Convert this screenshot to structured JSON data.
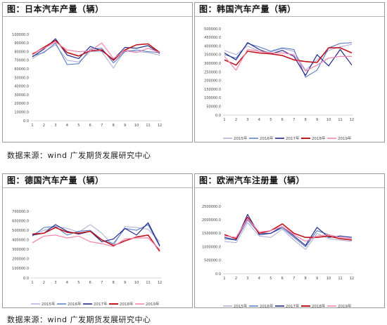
{
  "source_text": "数据来源：wind 广发期货发展研究中心",
  "colors": {
    "2015年": "#a9a9d4",
    "2016年": "#4a72c2",
    "2017年": "#222a8c",
    "2018年": "#c0141e",
    "2019年": "#f285aa"
  },
  "chart_data": [
    {
      "type": "line",
      "title": "图：日本汽车产量（辆）",
      "x": [
        1,
        2,
        3,
        4,
        5,
        6,
        7,
        8,
        9,
        10,
        11,
        12
      ],
      "ylim": [
        0,
        100000
      ],
      "yticks": [
        0,
        10000,
        20000,
        30000,
        40000,
        50000,
        60000,
        70000,
        80000,
        90000,
        100000
      ],
      "ytick_labels": [
        "0.0",
        "10000.0",
        "20000.0",
        "30000.0",
        "40000.0",
        "50000.0",
        "60000.0",
        "70000.0",
        "80000.0",
        "90000.0",
        "100000.0"
      ],
      "legend": "none",
      "series": [
        {
          "name": "2015年",
          "values": [
            72000,
            80000,
            88000,
            70000,
            68000,
            80000,
            80000,
            61000,
            82000,
            80000,
            79000,
            76000
          ]
        },
        {
          "name": "2016年",
          "values": [
            75000,
            79000,
            90000,
            65000,
            66000,
            83000,
            84000,
            67000,
            80000,
            82000,
            80000,
            79000
          ]
        },
        {
          "name": "2017年",
          "values": [
            74000,
            83000,
            95000,
            76000,
            72000,
            86000,
            81000,
            71000,
            85000,
            84000,
            87000,
            78000
          ]
        },
        {
          "name": "2018年",
          "values": [
            77000,
            85000,
            93000,
            79000,
            75000,
            81000,
            82000,
            70000,
            82000,
            88000,
            89000,
            79000
          ]
        },
        {
          "name": "2019年",
          "values": [
            78000,
            84000,
            91000,
            82000,
            80000,
            81000,
            90000,
            72000,
            81000,
            79000,
            84000,
            79000
          ]
        }
      ]
    },
    {
      "type": "line",
      "title": "图：韩国汽车产量（辆）",
      "x": [
        1,
        2,
        3,
        4,
        5,
        6,
        7,
        8,
        9,
        10,
        11,
        12
      ],
      "ylim": [
        0,
        500000
      ],
      "yticks": [
        0,
        50000,
        100000,
        150000,
        200000,
        250000,
        300000,
        350000,
        400000,
        450000,
        500000
      ],
      "ytick_labels": [
        "0.0",
        "50000.0",
        "100000.0",
        "150000.0",
        "200000.0",
        "250000.0",
        "300000.0",
        "350000.0",
        "400000.0",
        "450000.0",
        "500000.0"
      ],
      "legend": "bottom",
      "series": [
        {
          "name": "2015年",
          "values": [
            375000,
            350000,
            400000,
            370000,
            365000,
            385000,
            370000,
            260000,
            320000,
            375000,
            395000,
            410000
          ]
        },
        {
          "name": "2016年",
          "values": [
            350000,
            330000,
            415000,
            395000,
            370000,
            390000,
            380000,
            220000,
            260000,
            390000,
            415000,
            420000
          ]
        },
        {
          "name": "2017年",
          "values": [
            360000,
            320000,
            420000,
            380000,
            355000,
            375000,
            340000,
            230000,
            350000,
            285000,
            380000,
            290000
          ]
        },
        {
          "name": "2018年",
          "values": [
            320000,
            290000,
            370000,
            360000,
            355000,
            345000,
            320000,
            310000,
            305000,
            390000,
            390000,
            360000
          ]
        },
        {
          "name": "2019年",
          "values": [
            340000,
            260000,
            380000,
            370000,
            360000,
            360000,
            350000,
            255000,
            290000,
            330000,
            340000,
            340000
          ]
        }
      ]
    },
    {
      "type": "line",
      "title": "图：德国汽车产量（辆）",
      "x": [
        1,
        2,
        3,
        4,
        5,
        6,
        7,
        8,
        9,
        10,
        11,
        12
      ],
      "ylim": [
        0,
        700000
      ],
      "yticks": [
        0,
        100000,
        200000,
        300000,
        400000,
        500000,
        600000,
        700000
      ],
      "ytick_labels": [
        "0.0",
        "100000.0",
        "200000.0",
        "300000.0",
        "400000.0",
        "500000.0",
        "600000.0",
        "700000.0"
      ],
      "legend": "bottom",
      "series": [
        {
          "name": "2015年",
          "values": [
            460000,
            500000,
            540000,
            520000,
            480000,
            560000,
            470000,
            340000,
            540000,
            530000,
            510000,
            380000
          ]
        },
        {
          "name": "2016年",
          "values": [
            440000,
            530000,
            540000,
            450000,
            490000,
            500000,
            400000,
            360000,
            520000,
            500000,
            560000,
            330000
          ]
        },
        {
          "name": "2017年",
          "values": [
            450000,
            470000,
            560000,
            490000,
            460000,
            490000,
            380000,
            410000,
            520000,
            450000,
            580000,
            340000
          ]
        },
        {
          "name": "2018年",
          "values": [
            460000,
            470000,
            530000,
            480000,
            470000,
            490000,
            400000,
            340000,
            390000,
            430000,
            450000,
            280000
          ]
        },
        {
          "name": "2019年",
          "values": [
            370000,
            440000,
            450000,
            420000,
            440000,
            380000,
            360000,
            330000,
            410000,
            420000,
            420000,
            300000
          ]
        }
      ]
    },
    {
      "type": "line",
      "title": "图：欧洲汽车注册量（辆）",
      "x": [
        1,
        2,
        3,
        4,
        5,
        6,
        7,
        8,
        9,
        10,
        11,
        12
      ],
      "ylim": [
        0,
        2500000
      ],
      "yticks": [
        0,
        500000,
        1000000,
        1500000,
        2000000,
        2500000
      ],
      "ytick_labels": [
        "0.0",
        "500000.0",
        "1000000.0",
        "1500000.0",
        "2000000.0",
        "2500000.0"
      ],
      "legend": "bottom",
      "series": [
        {
          "name": "2015年",
          "values": [
            1200000,
            1150000,
            1900000,
            1400000,
            1350000,
            1650000,
            1250000,
            900000,
            1500000,
            1300000,
            1250000,
            1200000
          ]
        },
        {
          "name": "2016年",
          "values": [
            1300000,
            1250000,
            2000000,
            1500000,
            1500000,
            1700000,
            1350000,
            1000000,
            1600000,
            1450000,
            1350000,
            1300000
          ]
        },
        {
          "name": "2017年",
          "values": [
            1350000,
            1250000,
            2200000,
            1450000,
            1500000,
            1750000,
            1400000,
            1050000,
            1720000,
            1350000,
            1400000,
            1350000
          ]
        },
        {
          "name": "2018年",
          "values": [
            1450000,
            1300000,
            2100000,
            1500000,
            1600000,
            1850000,
            1500000,
            1350000,
            1350000,
            1400000,
            1300000,
            1250000
          ]
        },
        {
          "name": "2019年",
          "values": [
            1400000,
            1350000,
            2050000,
            1550000,
            1600000,
            1750000,
            1450000,
            1200000,
            1400000,
            1450000,
            1350000,
            1300000
          ]
        }
      ]
    }
  ]
}
